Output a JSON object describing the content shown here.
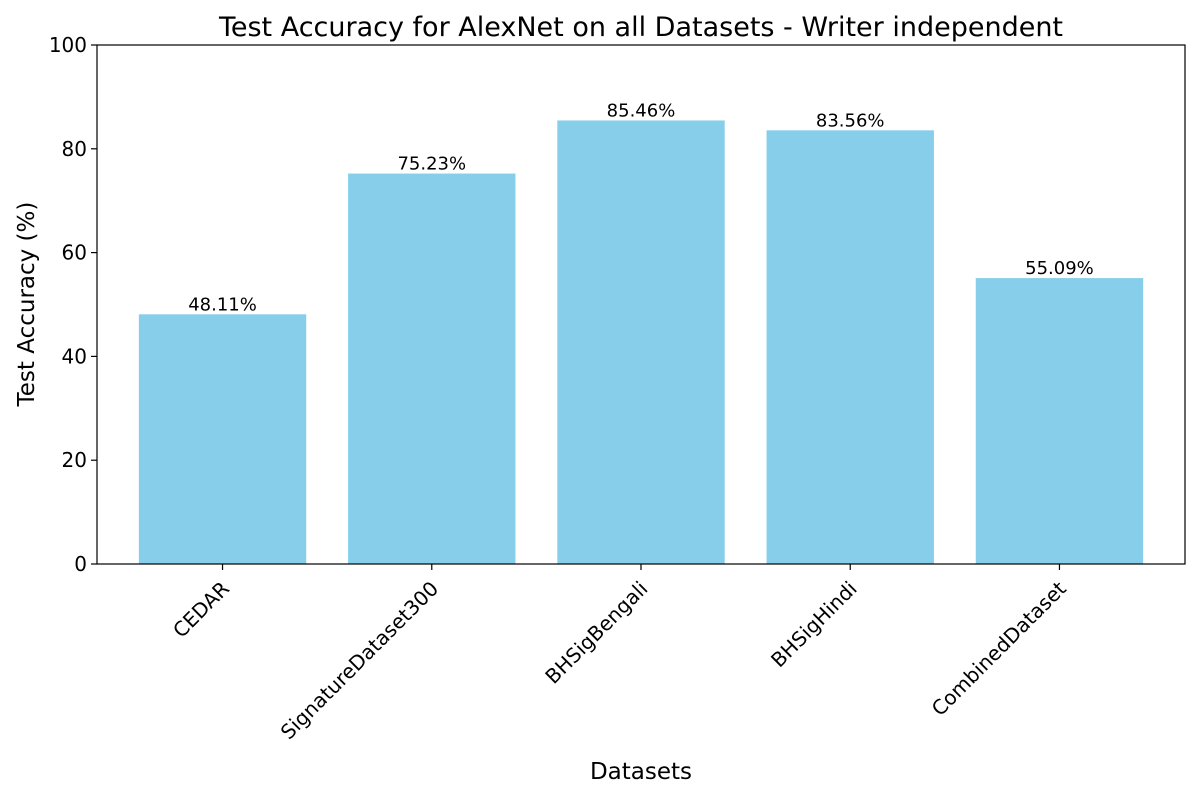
{
  "chart_data": {
    "type": "bar",
    "title": "Test Accuracy for AlexNet on all Datasets - Writer independent",
    "xlabel": "Datasets",
    "ylabel": "Test Accuracy (%)",
    "categories": [
      "CEDAR",
      "SignatureDataset300",
      "BHSigBengali",
      "BHSigHindi",
      "CombinedDataset"
    ],
    "values": [
      48.11,
      75.23,
      85.46,
      83.56,
      55.09
    ],
    "value_labels": [
      "48.11%",
      "75.23%",
      "85.46%",
      "83.56%",
      "55.09%"
    ],
    "ylim": [
      0,
      100
    ],
    "yticks": [
      0,
      20,
      40,
      60,
      80,
      100
    ],
    "bar_color": "#87ceeb",
    "grid": false,
    "xtick_rotation": "45 degrees"
  }
}
